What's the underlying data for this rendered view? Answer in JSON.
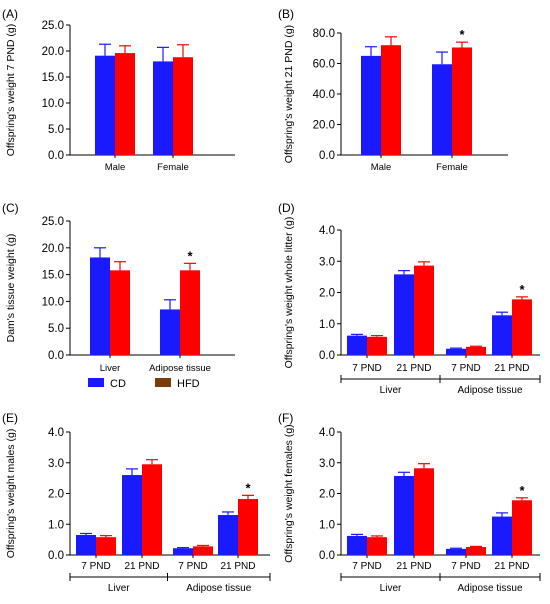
{
  "legend": {
    "items": [
      {
        "label": "CD",
        "color": "#1a1aff"
      },
      {
        "label": "HFD",
        "color": "#7a3d0a"
      }
    ]
  },
  "colors": {
    "cd": "#1a1aff",
    "hfd": "#ff0000",
    "hfd_legend": "#7a3d0a",
    "axis": "#000000"
  },
  "chart_data": [
    {
      "panel": "(A)",
      "type": "bar",
      "ylabel": "Offspring's weight 7 PND (g)",
      "ylim": [
        0,
        25
      ],
      "yticks": [
        "0.0",
        "5.0",
        "10.0",
        "15.0",
        "20.0",
        "25.0"
      ],
      "categories": [
        "Male",
        "Female"
      ],
      "series": [
        {
          "values": [
            19.1,
            18.0
          ],
          "errors": [
            2.2,
            2.7
          ]
        },
        {
          "values": [
            19.6,
            18.8
          ],
          "errors": [
            1.4,
            2.4
          ]
        }
      ],
      "significance": []
    },
    {
      "panel": "(B)",
      "type": "bar",
      "ylabel": "Offspring's weight  21 PND (g)",
      "ylim": [
        0,
        80
      ],
      "yticks": [
        "0.0",
        "20.0",
        "40.0",
        "60.0",
        "80.0"
      ],
      "categories": [
        "Male",
        "Female"
      ],
      "series": [
        {
          "values": [
            65.0,
            59.5
          ],
          "errors": [
            6.0,
            8.0
          ]
        },
        {
          "values": [
            72.0,
            70.5
          ],
          "errors": [
            5.5,
            3.5
          ]
        }
      ],
      "significance": [
        {
          "index": 1,
          "series": 1,
          "label": "*"
        }
      ]
    },
    {
      "panel": "(C)",
      "type": "bar",
      "ylabel": "Dam's tissue weight (g)",
      "ylim": [
        0,
        25
      ],
      "yticks": [
        "0.0",
        "5.0",
        "10.0",
        "15.0",
        "20.0",
        "25.0"
      ],
      "categories": [
        "Liver",
        "Adipose tissue"
      ],
      "series": [
        {
          "values": [
            18.2,
            8.5
          ],
          "errors": [
            1.8,
            1.8
          ]
        },
        {
          "values": [
            15.8,
            15.8
          ],
          "errors": [
            1.6,
            1.3
          ]
        }
      ],
      "significance": [
        {
          "index": 1,
          "series": 1,
          "label": "*"
        }
      ]
    },
    {
      "panel": "(D)",
      "type": "bar",
      "ylabel": "Offspring's weight whole litter (g)",
      "ylim": [
        0,
        4
      ],
      "yticks": [
        "0.0",
        "1.0",
        "2.0",
        "3.0",
        "4.0"
      ],
      "categories": [
        "7 PND",
        "21 PND",
        "7 PND",
        "21 PND"
      ],
      "groups": [
        "Liver",
        "Adipose tissue"
      ],
      "series": [
        {
          "values": [
            0.62,
            2.58,
            0.2,
            1.27
          ],
          "errors": [
            0.04,
            0.12,
            0.02,
            0.1
          ]
        },
        {
          "values": [
            0.58,
            2.86,
            0.26,
            1.78
          ],
          "errors": [
            0.04,
            0.12,
            0.02,
            0.08
          ]
        }
      ],
      "significance": [
        {
          "index": 3,
          "series": 1,
          "label": "*"
        }
      ]
    },
    {
      "panel": "(E)",
      "type": "bar",
      "ylabel": "Offspring's weight males (g)",
      "ylim": [
        0,
        4
      ],
      "yticks": [
        "0.0",
        "1.0",
        "2.0",
        "3.0",
        "4.0"
      ],
      "categories": [
        "7 PND",
        "21 PND",
        "7 PND",
        "21 PND"
      ],
      "groups": [
        "Liver",
        "Adipose tissue"
      ],
      "series": [
        {
          "values": [
            0.65,
            2.6,
            0.22,
            1.3
          ],
          "errors": [
            0.05,
            0.2,
            0.02,
            0.1
          ]
        },
        {
          "values": [
            0.58,
            2.95,
            0.28,
            1.82
          ],
          "errors": [
            0.05,
            0.15,
            0.03,
            0.12
          ]
        }
      ],
      "significance": [
        {
          "index": 3,
          "series": 1,
          "label": "*"
        }
      ]
    },
    {
      "panel": "(F)",
      "type": "bar",
      "ylabel": "Offspring's weight  females (g)",
      "ylim": [
        0,
        4
      ],
      "yticks": [
        "0.0",
        "1.0",
        "2.0",
        "3.0",
        "4.0"
      ],
      "categories": [
        "7 PND",
        "21 PND",
        "7 PND",
        "21 PND"
      ],
      "groups": [
        "Liver",
        "Adipose tissue"
      ],
      "series": [
        {
          "values": [
            0.62,
            2.57,
            0.2,
            1.25
          ],
          "errors": [
            0.05,
            0.12,
            0.02,
            0.12
          ]
        },
        {
          "values": [
            0.58,
            2.82,
            0.26,
            1.78
          ],
          "errors": [
            0.04,
            0.15,
            0.02,
            0.08
          ]
        }
      ],
      "significance": [
        {
          "index": 3,
          "series": 1,
          "label": "*"
        }
      ]
    }
  ]
}
